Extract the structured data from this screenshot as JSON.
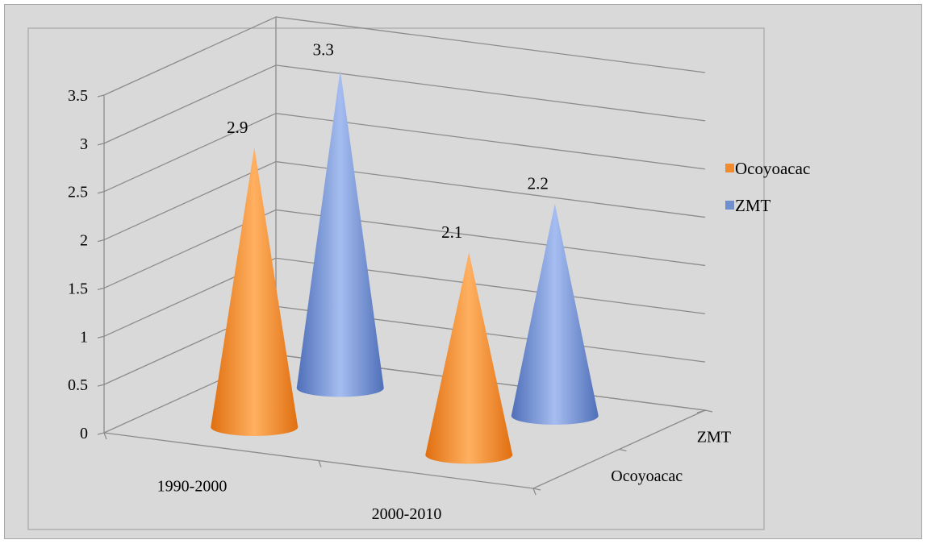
{
  "chart_data": {
    "type": "bar",
    "style": "3d-cone",
    "categories": [
      "1990-2000",
      "2000-2010"
    ],
    "depth_categories": [
      "Ocoyoacac",
      "ZMT"
    ],
    "series": [
      {
        "name": "Ocoyoacac",
        "values": [
          2.9,
          2.1
        ],
        "color": "#f38b2d",
        "labels": [
          "2.9",
          "2.1"
        ]
      },
      {
        "name": "ZMT",
        "values": [
          3.3,
          2.2
        ],
        "color": "#6f8fd0",
        "labels": [
          "3.3",
          "2.2"
        ]
      }
    ],
    "y_ticks": [
      "0",
      "0.5",
      "1",
      "1.5",
      "2",
      "2.5",
      "3",
      "3.5"
    ],
    "ylim": [
      0,
      3.5
    ],
    "grid": true,
    "legend_position": "right"
  }
}
